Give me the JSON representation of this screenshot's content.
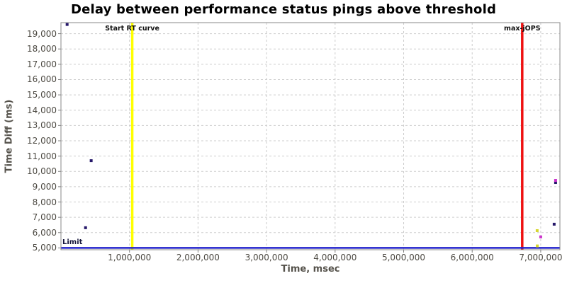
{
  "chart_data": {
    "type": "scatter",
    "title": "Delay between performance status pings above threshold",
    "xlabel": "Time, msec",
    "ylabel": "Time Diff (ms)",
    "xlim": [
      0,
      7280000
    ],
    "ylim": [
      4880,
      19720
    ],
    "xticks": [
      1000000,
      2000000,
      3000000,
      4000000,
      5000000,
      6000000,
      7000000
    ],
    "yticks": [
      5000,
      6000,
      7000,
      8000,
      9000,
      10000,
      11000,
      12000,
      13000,
      14000,
      15000,
      16000,
      17000,
      18000,
      19000
    ],
    "grid": true,
    "legend": "none",
    "series": [
      {
        "name": "navy",
        "color": "#26186a",
        "points": [
          [
            90000,
            19600
          ],
          [
            441000,
            10700
          ],
          [
            359000,
            6320
          ],
          [
            7217000,
            9270
          ],
          [
            7196000,
            6550
          ]
        ]
      },
      {
        "name": "magenta",
        "color": "#cc33cc",
        "points": [
          [
            7217000,
            9410
          ],
          [
            7000000,
            5720
          ]
        ]
      },
      {
        "name": "yellow",
        "color": "#d6d62e",
        "points": [
          [
            6948000,
            6130
          ],
          [
            6950000,
            5130
          ]
        ]
      }
    ],
    "vlines": [
      {
        "x": 1040000,
        "color": "#ffff00",
        "label": "Start RT curve"
      },
      {
        "x": 6730000,
        "color": "#ee1111",
        "label": "max-jOPS"
      }
    ],
    "hlines": [
      {
        "y": 5000,
        "color": "#2222cc",
        "label": "Limit"
      }
    ]
  },
  "colors": {
    "grid": "#cdcdcd",
    "plot_border": "#8a8a8a",
    "tick": "#808080",
    "tick_text": "#4d4a43",
    "axis_title_text": "#55524b",
    "title_text": "#000000",
    "background": "#ffffff"
  }
}
